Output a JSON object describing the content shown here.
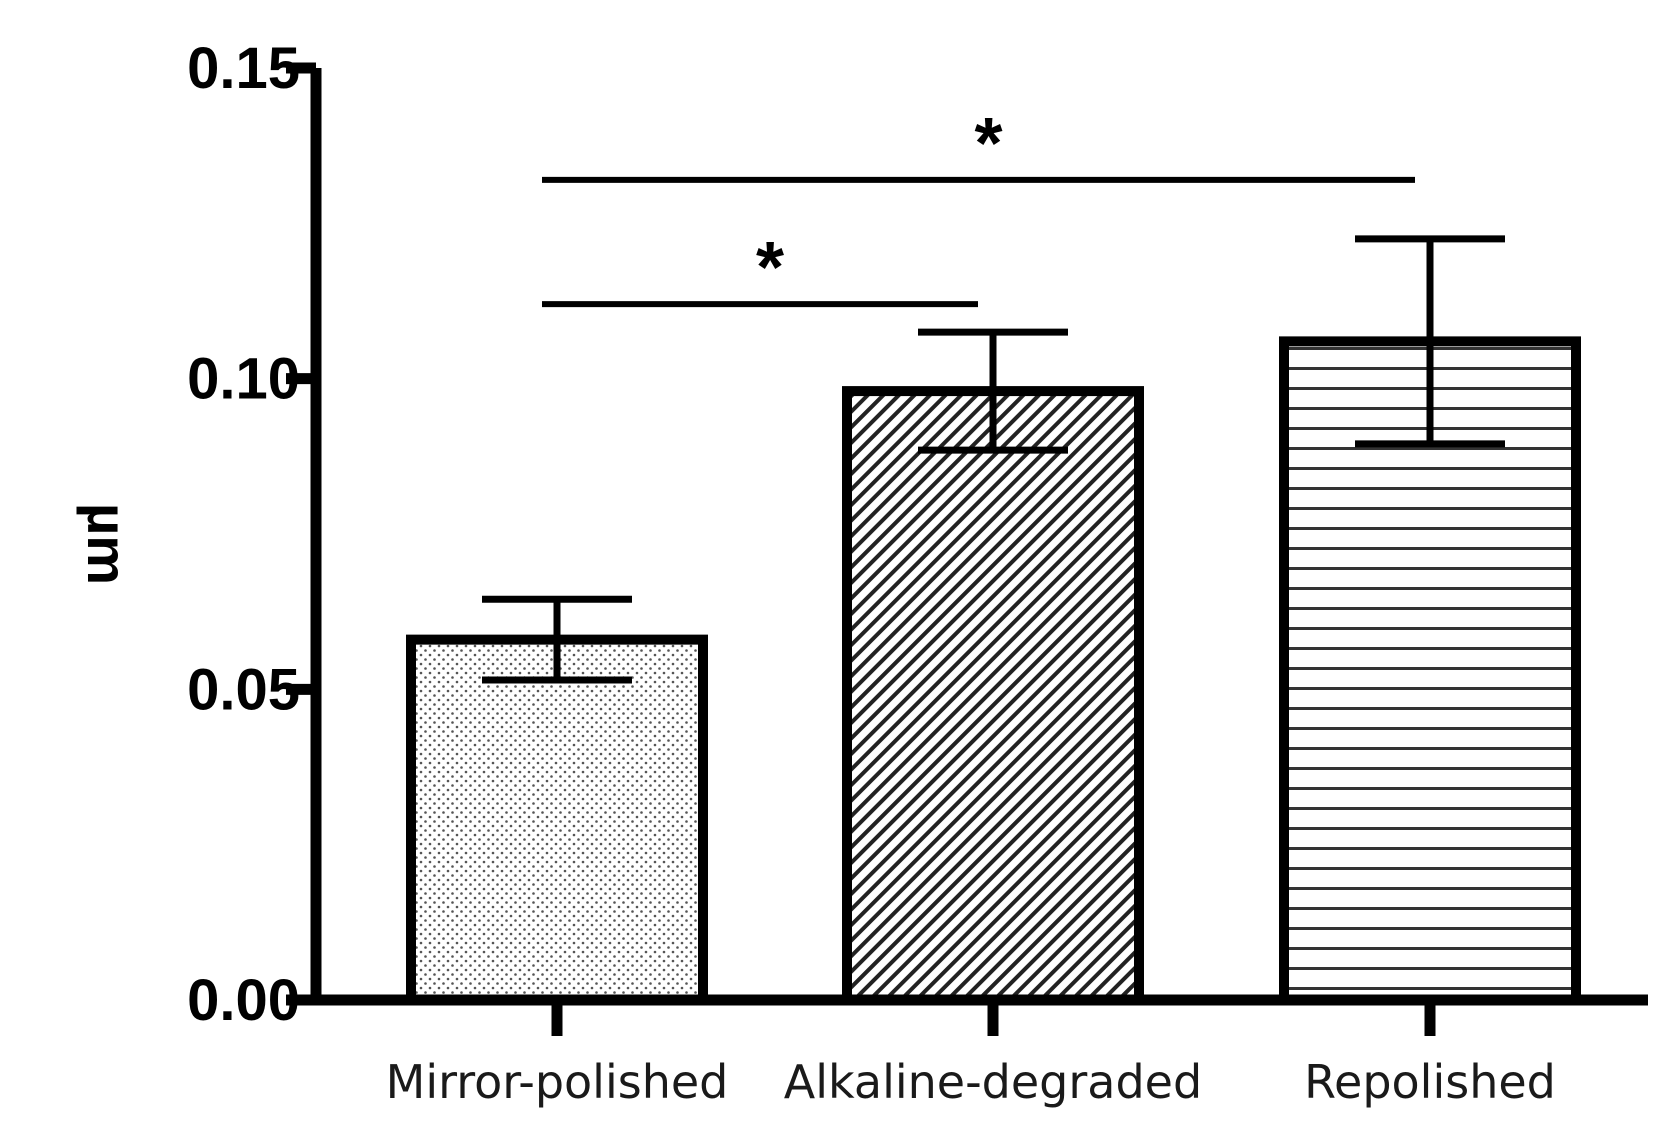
{
  "chart_data": {
    "type": "bar",
    "title": "",
    "xlabel": "",
    "ylabel": "µm",
    "ylim": [
      0,
      0.15
    ],
    "yticks": [
      "0.00",
      "0.05",
      "0.10",
      "0.15"
    ],
    "categories": [
      "Mirror-polished",
      "Alkaline-degraded",
      "Repolished"
    ],
    "values": [
      0.058,
      0.098,
      0.106
    ],
    "error": [
      0.0065,
      0.0095,
      0.0165
    ],
    "fill_patterns": [
      "dots",
      "diagonal-hatch",
      "horizontal-lines"
    ],
    "significance": [
      {
        "from": 0,
        "to": 1,
        "y": 0.112,
        "label": "*"
      },
      {
        "from": 0,
        "to": 2,
        "y": 0.132,
        "label": "*"
      }
    ],
    "grid": false,
    "legend": "none"
  }
}
